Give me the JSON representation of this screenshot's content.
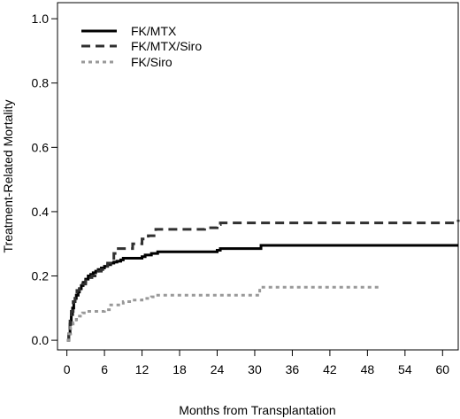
{
  "chart_data": {
    "type": "line",
    "title": "",
    "xlabel": "Months from Transplantation",
    "ylabel": "Treatment-Related Mortality",
    "xlim": [
      -1.5,
      62.5
    ],
    "ylim": [
      -0.03,
      1.05
    ],
    "xticks": [
      0,
      6,
      12,
      18,
      24,
      30,
      36,
      42,
      48,
      54,
      60
    ],
    "yticks": [
      0.0,
      0.2,
      0.4,
      0.6,
      0.8,
      1.0
    ],
    "xtick_labels": [
      "0",
      "6",
      "12",
      "18",
      "24",
      "30",
      "36",
      "42",
      "48",
      "54",
      "60"
    ],
    "ytick_labels": [
      "0.0",
      "0.2",
      "0.4",
      "0.6",
      "0.8",
      "1.0"
    ],
    "grid": false,
    "legend_position": "top-left",
    "series": [
      {
        "name": "FK/MTX",
        "color": "#000000",
        "style": "solid",
        "step": true,
        "x": [
          0,
          0.3,
          0.5,
          0.7,
          0.9,
          1.1,
          1.3,
          1.5,
          1.8,
          2.0,
          2.3,
          2.6,
          3.0,
          3.4,
          3.8,
          4.2,
          4.6,
          5.0,
          5.5,
          6.0,
          6.5,
          7.0,
          7.5,
          8.0,
          8.6,
          9.0,
          12.0,
          12.5,
          13.5,
          14.5,
          24.0,
          24.5,
          31.0,
          62.5
        ],
        "y": [
          0.0,
          0.02,
          0.05,
          0.08,
          0.1,
          0.12,
          0.13,
          0.14,
          0.15,
          0.16,
          0.17,
          0.18,
          0.19,
          0.2,
          0.205,
          0.21,
          0.215,
          0.22,
          0.225,
          0.23,
          0.235,
          0.24,
          0.243,
          0.246,
          0.25,
          0.255,
          0.26,
          0.265,
          0.27,
          0.275,
          0.28,
          0.285,
          0.295,
          0.295
        ]
      },
      {
        "name": "FK/MTX/Siro",
        "color": "#303030",
        "style": "dashed",
        "step": true,
        "x": [
          0,
          0.3,
          0.5,
          0.7,
          1.0,
          1.3,
          1.6,
          2.0,
          2.5,
          3.0,
          3.5,
          4.0,
          4.5,
          5.0,
          5.5,
          6.0,
          6.5,
          7.5,
          8.2,
          10.5,
          12.0,
          13.0,
          14.2,
          22.0,
          24.0,
          24.5,
          62.5
        ],
        "y": [
          0.0,
          0.03,
          0.06,
          0.09,
          0.12,
          0.14,
          0.155,
          0.165,
          0.175,
          0.185,
          0.195,
          0.2,
          0.21,
          0.215,
          0.22,
          0.225,
          0.24,
          0.27,
          0.285,
          0.3,
          0.315,
          0.325,
          0.345,
          0.35,
          0.36,
          0.365,
          0.375
        ]
      },
      {
        "name": "FK/Siro",
        "color": "#999999",
        "style": "dotted",
        "step": true,
        "x": [
          0,
          0.3,
          0.6,
          1.0,
          1.5,
          2.0,
          2.5,
          3.0,
          6.0,
          7.0,
          9.0,
          10.5,
          12.0,
          13.5,
          14.5,
          30.8,
          50.0
        ],
        "y": [
          0.0,
          0.02,
          0.04,
          0.055,
          0.065,
          0.075,
          0.085,
          0.09,
          0.095,
          0.11,
          0.12,
          0.125,
          0.13,
          0.135,
          0.14,
          0.165,
          0.165
        ]
      }
    ]
  }
}
